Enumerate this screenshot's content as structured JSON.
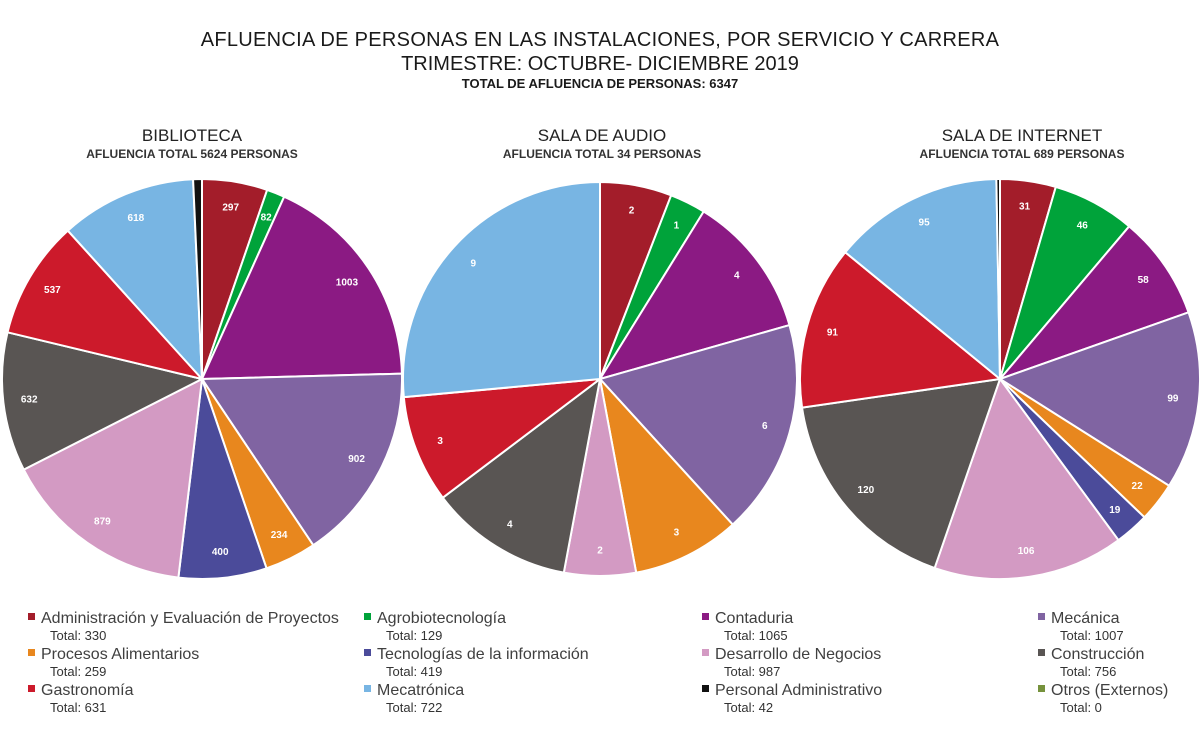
{
  "header": {
    "title": "AFLUENCIA DE PERSONAS EN LAS INSTALACIONES, POR SERVICIO Y CARRERA",
    "subtitle": "TRIMESTRE: OCTUBRE- DICIEMBRE 2019",
    "total": "TOTAL DE AFLUENCIA DE PERSONAS: 6347"
  },
  "legend": [
    {
      "name": "Administración y Evaluación de Proyectos",
      "total": "Total: 330",
      "color": "#a31d2a"
    },
    {
      "name": "Agrobiotecnología",
      "total": "Total: 129",
      "color": "#00a33a"
    },
    {
      "name": "Contaduria",
      "total": "Total: 1065",
      "color": "#8b1a83"
    },
    {
      "name": "Mecánica",
      "total": "Total: 1007",
      "color": "#8064a2"
    },
    {
      "name": "Procesos Alimentarios",
      "total": "Total: 259",
      "color": "#e8871e"
    },
    {
      "name": "Tecnologías de la información",
      "total": "Total: 419",
      "color": "#4b4b9a"
    },
    {
      "name": "Desarrollo de Negocios",
      "total": "Total: 987",
      "color": "#d39ac3"
    },
    {
      "name": "Construcción",
      "total": "Total: 756",
      "color": "#595553"
    },
    {
      "name": "Gastronomía",
      "total": "Total: 631",
      "color": "#cc1a2b"
    },
    {
      "name": "Mecatrónica",
      "total": "Total: 722",
      "color": "#78b5e3"
    },
    {
      "name": "Personal Administrativo",
      "total": "Total: 42",
      "color": "#111111"
    },
    {
      "name": "Otros (Externos)",
      "total": "Total: 0",
      "color": "#76923c"
    }
  ],
  "chart_data": [
    {
      "type": "pie",
      "title": "BIBLIOTECA",
      "subtitle": "AFLUENCIA TOTAL 5624 PERSONAS",
      "categories": [
        "Administración y Evaluación de Proyectos",
        "Agrobiotecnología",
        "Contaduria",
        "Mecánica",
        "Procesos Alimentarios",
        "Tecnologías de la información",
        "Desarrollo de Negocios",
        "Construcción",
        "Gastronomía",
        "Mecatrónica",
        "Personal Administrativo",
        "Otros (Externos)"
      ],
      "values": [
        297,
        82,
        1003,
        902,
        234,
        400,
        879,
        632,
        537,
        618,
        40,
        0
      ],
      "labels": [
        "297",
        "82",
        "1003",
        "902",
        "234",
        "400",
        "879",
        "632",
        "537",
        "618",
        "",
        ""
      ]
    },
    {
      "type": "pie",
      "title": "SALA DE AUDIO",
      "subtitle": "AFLUENCIA TOTAL 34 PERSONAS",
      "categories": [
        "Administración y Evaluación de Proyectos",
        "Agrobiotecnología",
        "Contaduria",
        "Mecánica",
        "Procesos Alimentarios",
        "Tecnologías de la información",
        "Desarrollo de Negocios",
        "Construcción",
        "Gastronomía",
        "Mecatrónica",
        "Personal Administrativo",
        "Otros (Externos)"
      ],
      "values": [
        2,
        1,
        4,
        6,
        3,
        0,
        2,
        4,
        3,
        9,
        0,
        0
      ],
      "labels": [
        "2",
        "1",
        "4",
        "6",
        "3",
        "",
        "2",
        "4",
        "3",
        "9",
        "",
        ""
      ]
    },
    {
      "type": "pie",
      "title": "SALA DE INTERNET",
      "subtitle": "AFLUENCIA TOTAL 689 PERSONAS",
      "categories": [
        "Administración y Evaluación de Proyectos",
        "Agrobiotecnología",
        "Contaduria",
        "Mecánica",
        "Procesos Alimentarios",
        "Tecnologías de la información",
        "Desarrollo de Negocios",
        "Construcción",
        "Gastronomía",
        "Mecatrónica",
        "Personal Administrativo",
        "Otros (Externos)"
      ],
      "values": [
        31,
        46,
        58,
        99,
        22,
        19,
        106,
        120,
        91,
        95,
        2,
        0
      ],
      "labels": [
        "31",
        "46",
        "58",
        "99",
        "22",
        "19",
        "106",
        "120",
        "91",
        "95",
        "",
        ""
      ]
    }
  ]
}
